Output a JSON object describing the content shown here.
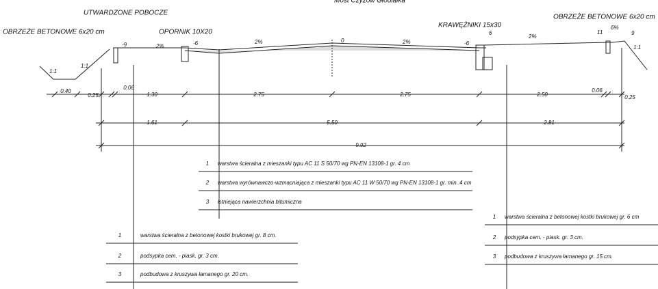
{
  "title": "Most Czyżów Głodlalka",
  "labels": {
    "shoulder": "UTWARDZONE POBOCZE",
    "edge_left": "OBRZEŻE BETONOWE 6x20 cm",
    "stop": "OPORNIK 10X20",
    "curbs": "KRAWĘŻNIKI 15x30",
    "edge_right": "OBRZEŻE BETONOWE 6x20 cm"
  },
  "levels": [
    "-9",
    "-6",
    "0",
    "-6",
    "6",
    "11",
    "9"
  ],
  "slopes": [
    "2%",
    "2%",
    "2%",
    "2%",
    "6%",
    "1:1",
    "1:1",
    "1:1"
  ],
  "dimensions": {
    "row1": [
      "0.40",
      "0.25",
      "0.06",
      "1.30",
      "2.75",
      "2.75",
      "2.50",
      "0.06",
      "0.25"
    ],
    "row2": [
      "1.61",
      "5.50",
      "2.81"
    ],
    "row3": [
      "9.92"
    ]
  },
  "tables": [
    {
      "rows": [
        [
          "1",
          "warstwa ścieralna z mieszanki typu AC 11 S 50/70 wg PN-EN 13108-1 gr. 4 cm"
        ],
        [
          "2",
          "warstwa wyrównawczo-wzmacniająca z mieszanki typu AC 11 W 50/70 wg PN-EN 13108-1 gr. min. 4 cm"
        ],
        [
          "3",
          "istniejąca nawierzchnia bitumiczna"
        ]
      ]
    },
    {
      "rows": [
        [
          "1",
          "warstwa ścieralna z betonowej kostki brukowej gr. 8 cm."
        ],
        [
          "2",
          "podsypka cem. - piask. gr. 3 cm."
        ],
        [
          "3",
          "podbudowa z kruszywa łamanego gr. 20 cm."
        ]
      ]
    },
    {
      "rows": [
        [
          "1",
          "warstwa ścieralna z betonowej kostki brukowej gr. 6 cm"
        ],
        [
          "2",
          "podsypka cem. - piask. gr. 3 cm."
        ],
        [
          "3",
          "podbudowa z kruszywa łamanego gr. 15 cm."
        ]
      ]
    }
  ]
}
